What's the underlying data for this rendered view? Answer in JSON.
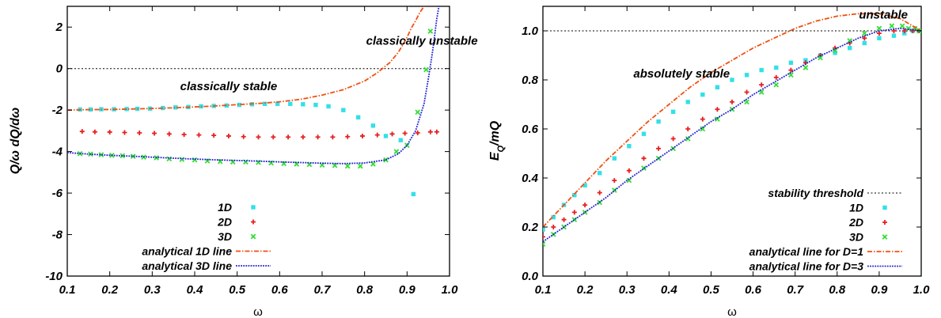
{
  "chart_data": [
    {
      "type": "scatter",
      "xlabel": "ω",
      "ylabel": "Q/ω dQ/dω",
      "xlim": [
        0.1,
        1.0
      ],
      "ylim": [
        -10,
        3
      ],
      "xticks": [
        "0.1",
        "0.2",
        "0.3",
        "0.4",
        "0.5",
        "0.6",
        "0.7",
        "0.8",
        "0.9",
        "1.0"
      ],
      "xtick_values": [
        0.1,
        0.2,
        0.3,
        0.4,
        0.5,
        0.6,
        0.7,
        0.8,
        0.9,
        1.0
      ],
      "yticks": [
        "-10",
        "-8",
        "-6",
        "-4",
        "-2",
        "0",
        "2"
      ],
      "ytick_values": [
        -10,
        -8,
        -6,
        -4,
        -2,
        0,
        2
      ],
      "reference_line": {
        "y": 0,
        "style": "dotted",
        "color": "#000000"
      },
      "legend_position": "bottom-left",
      "annotations": [
        {
          "text": "classically unstable",
          "x": 0.935,
          "y": 1.15
        },
        {
          "text": "classically stable",
          "x": 0.48,
          "y": -1.05
        }
      ],
      "series": [
        {
          "name": "1D",
          "kind": "points",
          "marker": "square",
          "color": "#33e0e8",
          "x": [
            0.13,
            0.155,
            0.18,
            0.21,
            0.24,
            0.265,
            0.295,
            0.325,
            0.355,
            0.385,
            0.415,
            0.445,
            0.475,
            0.505,
            0.535,
            0.565,
            0.595,
            0.625,
            0.655,
            0.685,
            0.715,
            0.75,
            0.785,
            0.82,
            0.85,
            0.885,
            0.915
          ],
          "y": [
            -1.97,
            -1.97,
            -1.96,
            -1.96,
            -1.95,
            -1.94,
            -1.93,
            -1.9,
            -1.87,
            -1.85,
            -1.82,
            -1.8,
            -1.78,
            -1.75,
            -1.72,
            -1.7,
            -1.7,
            -1.7,
            -1.72,
            -1.75,
            -1.82,
            -2.0,
            -2.35,
            -2.75,
            -3.25,
            -3.45,
            -6.05
          ]
        },
        {
          "name": "2D",
          "kind": "points",
          "marker": "plus",
          "color": "#e82020",
          "x": [
            0.135,
            0.165,
            0.2,
            0.235,
            0.27,
            0.305,
            0.34,
            0.375,
            0.41,
            0.445,
            0.48,
            0.515,
            0.55,
            0.585,
            0.62,
            0.655,
            0.69,
            0.725,
            0.76,
            0.795,
            0.83,
            0.865,
            0.895,
            0.925,
            0.955,
            0.97
          ],
          "y": [
            -3.03,
            -3.05,
            -3.06,
            -3.08,
            -3.1,
            -3.12,
            -3.15,
            -3.18,
            -3.2,
            -3.22,
            -3.25,
            -3.28,
            -3.3,
            -3.3,
            -3.3,
            -3.3,
            -3.3,
            -3.3,
            -3.28,
            -3.25,
            -3.2,
            -3.15,
            -3.12,
            -3.1,
            -3.05,
            -3.05
          ]
        },
        {
          "name": "3D",
          "kind": "points",
          "marker": "cross",
          "color": "#33dd33",
          "x": [
            0.13,
            0.155,
            0.18,
            0.205,
            0.23,
            0.255,
            0.28,
            0.31,
            0.34,
            0.37,
            0.4,
            0.43,
            0.46,
            0.49,
            0.52,
            0.55,
            0.58,
            0.61,
            0.64,
            0.67,
            0.7,
            0.73,
            0.76,
            0.79,
            0.82,
            0.85,
            0.875,
            0.9,
            0.925,
            0.945,
            0.955
          ],
          "y": [
            -4.1,
            -4.12,
            -4.15,
            -4.18,
            -4.2,
            -4.23,
            -4.27,
            -4.3,
            -4.35,
            -4.38,
            -4.4,
            -4.45,
            -4.48,
            -4.5,
            -4.5,
            -4.52,
            -4.55,
            -4.58,
            -4.6,
            -4.62,
            -4.65,
            -4.67,
            -4.7,
            -4.7,
            -4.6,
            -4.4,
            -4.0,
            -3.7,
            -2.1,
            -0.05,
            1.8
          ]
        },
        {
          "name": "analytical 1D line",
          "kind": "line",
          "style": "dash-dot",
          "color": "#f05010",
          "x": [
            0.1,
            0.15,
            0.2,
            0.25,
            0.3,
            0.35,
            0.4,
            0.45,
            0.5,
            0.55,
            0.6,
            0.65,
            0.7,
            0.75,
            0.8,
            0.83,
            0.86,
            0.88,
            0.9,
            0.91,
            0.92,
            0.93,
            0.94
          ],
          "y": [
            -2.0,
            -1.98,
            -1.97,
            -1.95,
            -1.92,
            -1.89,
            -1.85,
            -1.8,
            -1.74,
            -1.68,
            -1.6,
            -1.48,
            -1.28,
            -1.02,
            -0.6,
            -0.2,
            0.3,
            0.8,
            1.5,
            1.95,
            2.3,
            2.7,
            3.0
          ]
        },
        {
          "name": "analytical 3D line",
          "kind": "line",
          "style": "dotted",
          "color": "#2020d0",
          "x": [
            0.1,
            0.15,
            0.2,
            0.25,
            0.3,
            0.35,
            0.4,
            0.45,
            0.5,
            0.55,
            0.6,
            0.65,
            0.7,
            0.75,
            0.8,
            0.85,
            0.88,
            0.9,
            0.92,
            0.94,
            0.95,
            0.96,
            0.965,
            0.97,
            0.975
          ],
          "y": [
            -4.05,
            -4.12,
            -4.18,
            -4.22,
            -4.27,
            -4.32,
            -4.36,
            -4.4,
            -4.43,
            -4.46,
            -4.5,
            -4.53,
            -4.56,
            -4.58,
            -4.55,
            -4.4,
            -4.1,
            -3.7,
            -3.0,
            -1.7,
            -0.5,
            0.8,
            1.6,
            2.4,
            3.0
          ]
        }
      ]
    },
    {
      "type": "scatter",
      "xlabel": "ω",
      "ylabel": "E_Q/mQ",
      "ylabel_base": "E",
      "ylabel_sub": "Q",
      "ylabel_rest": "/mQ",
      "xlim": [
        0.1,
        1.0
      ],
      "ylim": [
        0.0,
        1.1
      ],
      "xticks": [
        "0.1",
        "0.2",
        "0.3",
        "0.4",
        "0.5",
        "0.6",
        "0.7",
        "0.8",
        "0.9",
        "1.0"
      ],
      "xtick_values": [
        0.1,
        0.2,
        0.3,
        0.4,
        0.5,
        0.6,
        0.7,
        0.8,
        0.9,
        1.0
      ],
      "yticks": [
        "0.0",
        "0.2",
        "0.4",
        "0.6",
        "0.8",
        "1.0"
      ],
      "ytick_values": [
        0.0,
        0.2,
        0.4,
        0.6,
        0.8,
        1.0
      ],
      "legend_position": "bottom-right",
      "annotations": [
        {
          "text": "unstable",
          "x": 0.91,
          "y": 1.05
        },
        {
          "text": "absolutely stable",
          "x": 0.43,
          "y": 0.81
        }
      ],
      "series": [
        {
          "name": "stability threshold",
          "kind": "line",
          "style": "dotted-fine",
          "color": "#000000",
          "x": [
            0.1,
            1.0
          ],
          "y": [
            1.0,
            1.0
          ]
        },
        {
          "name": "1D",
          "kind": "points",
          "marker": "square",
          "color": "#33e0e8",
          "x": [
            0.1,
            0.125,
            0.15,
            0.175,
            0.2,
            0.235,
            0.27,
            0.305,
            0.34,
            0.375,
            0.41,
            0.445,
            0.48,
            0.515,
            0.55,
            0.585,
            0.62,
            0.655,
            0.69,
            0.725,
            0.76,
            0.795,
            0.83,
            0.865,
            0.9,
            0.935,
            0.96,
            0.98,
            0.995
          ],
          "y": [
            0.19,
            0.24,
            0.29,
            0.33,
            0.37,
            0.42,
            0.48,
            0.53,
            0.58,
            0.63,
            0.67,
            0.71,
            0.74,
            0.77,
            0.8,
            0.82,
            0.84,
            0.85,
            0.87,
            0.88,
            0.9,
            0.91,
            0.93,
            0.95,
            0.97,
            0.98,
            0.99,
            1.0,
            1.0
          ]
        },
        {
          "name": "2D",
          "kind": "points",
          "marker": "plus",
          "color": "#e82020",
          "x": [
            0.1,
            0.125,
            0.15,
            0.175,
            0.2,
            0.235,
            0.27,
            0.305,
            0.34,
            0.375,
            0.41,
            0.445,
            0.48,
            0.515,
            0.55,
            0.585,
            0.62,
            0.655,
            0.69,
            0.725,
            0.76,
            0.795,
            0.83,
            0.865,
            0.9,
            0.935,
            0.96,
            0.98,
            0.995
          ],
          "y": [
            0.16,
            0.2,
            0.23,
            0.26,
            0.29,
            0.34,
            0.39,
            0.43,
            0.48,
            0.52,
            0.56,
            0.6,
            0.64,
            0.68,
            0.71,
            0.75,
            0.78,
            0.81,
            0.84,
            0.87,
            0.9,
            0.93,
            0.95,
            0.97,
            0.99,
            1.0,
            1.0,
            1.0,
            1.0
          ]
        },
        {
          "name": "3D",
          "kind": "points",
          "marker": "cross",
          "color": "#33dd33",
          "x": [
            0.1,
            0.125,
            0.15,
            0.175,
            0.2,
            0.235,
            0.27,
            0.305,
            0.34,
            0.375,
            0.41,
            0.445,
            0.48,
            0.515,
            0.55,
            0.585,
            0.62,
            0.655,
            0.69,
            0.725,
            0.76,
            0.795,
            0.83,
            0.865,
            0.9,
            0.93,
            0.955,
            0.97,
            0.985,
            0.995
          ],
          "y": [
            0.13,
            0.17,
            0.2,
            0.23,
            0.26,
            0.3,
            0.35,
            0.39,
            0.44,
            0.48,
            0.52,
            0.56,
            0.6,
            0.64,
            0.68,
            0.71,
            0.75,
            0.78,
            0.82,
            0.85,
            0.89,
            0.92,
            0.96,
            0.99,
            1.01,
            1.02,
            1.02,
            1.01,
            1.01,
            1.0
          ]
        },
        {
          "name": "analytical line for D=1",
          "kind": "line",
          "style": "dash-dot",
          "color": "#f05010",
          "x": [
            0.1,
            0.15,
            0.2,
            0.25,
            0.3,
            0.35,
            0.4,
            0.45,
            0.5,
            0.55,
            0.6,
            0.65,
            0.7,
            0.75,
            0.8,
            0.85,
            0.9,
            0.95,
            1.0
          ],
          "y": [
            0.2,
            0.29,
            0.38,
            0.47,
            0.55,
            0.63,
            0.7,
            0.77,
            0.83,
            0.88,
            0.93,
            0.97,
            1.01,
            1.04,
            1.06,
            1.07,
            1.07,
            1.05,
            1.0
          ]
        },
        {
          "name": "analytical line for D=3",
          "kind": "line",
          "style": "dotted",
          "color": "#2020d0",
          "x": [
            0.1,
            0.15,
            0.2,
            0.25,
            0.3,
            0.35,
            0.4,
            0.45,
            0.5,
            0.55,
            0.6,
            0.65,
            0.7,
            0.75,
            0.8,
            0.85,
            0.9,
            0.95,
            1.0
          ],
          "y": [
            0.14,
            0.2,
            0.26,
            0.32,
            0.39,
            0.45,
            0.51,
            0.57,
            0.63,
            0.68,
            0.74,
            0.79,
            0.84,
            0.89,
            0.93,
            0.97,
            1.0,
            1.01,
            1.0
          ]
        }
      ]
    }
  ]
}
